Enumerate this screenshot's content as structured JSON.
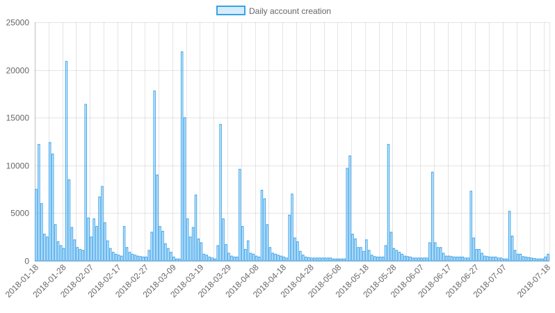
{
  "chart_data": {
    "type": "bar",
    "title": "",
    "xlabel": "",
    "ylabel": "",
    "ylim": [
      0,
      25000
    ],
    "yticks": [
      0,
      5000,
      10000,
      15000,
      20000,
      25000
    ],
    "xtick_labels": [
      "2018-01-18",
      "2018-01-28",
      "2018-02-07",
      "2018-02-17",
      "2018-02-27",
      "2018-03-09",
      "2018-03-19",
      "2018-03-29",
      "2018-04-08",
      "2018-04-18",
      "2018-04-28",
      "2018-05-08",
      "2018-05-18",
      "2018-05-28",
      "2018-06-07",
      "2018-06-17",
      "2018-06-27",
      "2018-07-07",
      "2018-07-18"
    ],
    "grid": true,
    "legend_position": "top-center",
    "colors": {
      "bar_fill": "rgba(54,162,235,0.2)",
      "bar_border": "#36a2eb"
    },
    "series": [
      {
        "name": "Daily account creation",
        "categories_start": "2018-01-18",
        "categories_end": "2018-07-18",
        "values": [
          7500,
          12200,
          6000,
          2800,
          2500,
          12400,
          11200,
          3800,
          2000,
          1600,
          1300,
          20900,
          8500,
          3500,
          2200,
          1400,
          1200,
          1100,
          16400,
          4500,
          2500,
          4400,
          3600,
          6700,
          7800,
          4000,
          2100,
          1300,
          900,
          700,
          600,
          500,
          3600,
          1400,
          900,
          700,
          600,
          500,
          450,
          400,
          400,
          1100,
          3000,
          17800,
          9000,
          3600,
          3100,
          1800,
          1300,
          900,
          400,
          200,
          200,
          21900,
          15000,
          4400,
          2500,
          3500,
          6900,
          2300,
          1900,
          700,
          600,
          400,
          300,
          200,
          1600,
          14300,
          4400,
          1700,
          800,
          500,
          400,
          400,
          9600,
          3600,
          1200,
          2100,
          800,
          700,
          500,
          400,
          7400,
          6500,
          3800,
          1400,
          800,
          700,
          600,
          500,
          400,
          300,
          4800,
          7000,
          2400,
          2000,
          1000,
          600,
          400,
          350,
          300,
          300,
          300,
          300,
          300,
          300,
          300,
          300,
          200,
          200,
          200,
          200,
          200,
          9700,
          11000,
          2800,
          2300,
          1400,
          1400,
          1000,
          2200,
          1100,
          600,
          450,
          400,
          400,
          400,
          1600,
          12200,
          3000,
          1300,
          1100,
          900,
          700,
          500,
          450,
          400,
          300,
          300,
          300,
          300,
          300,
          300,
          1900,
          9300,
          1900,
          1400,
          1400,
          800,
          500,
          500,
          450,
          400,
          400,
          400,
          400,
          300,
          300,
          7300,
          2400,
          1200,
          1200,
          800,
          500,
          450,
          400,
          400,
          400,
          300,
          300,
          200,
          200,
          5200,
          2600,
          1100,
          700,
          700,
          450,
          400,
          350,
          300,
          250,
          200,
          200,
          200,
          400,
          700
        ]
      }
    ]
  }
}
